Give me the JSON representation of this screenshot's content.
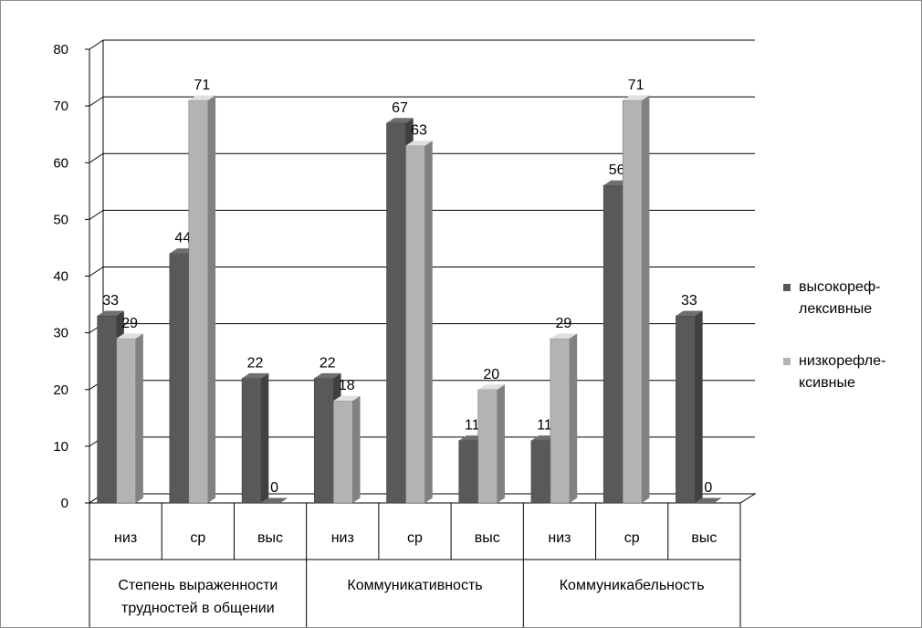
{
  "chart_data": {
    "type": "bar",
    "categories": [
      "низ",
      "ср",
      "выс",
      "низ",
      "ср",
      "выс",
      "низ",
      "ср",
      "выс"
    ],
    "groups": [
      {
        "lines": [
          "Степень выраженности",
          "трудностей в общении"
        ],
        "span": 3
      },
      {
        "lines": [
          "Коммуникативность"
        ],
        "span": 3
      },
      {
        "lines": [
          "Коммуникабельность"
        ],
        "span": 3
      }
    ],
    "series": [
      {
        "name_lines": [
          "высокореф-",
          "лексивные"
        ],
        "color": "#595959",
        "values": [
          33,
          44,
          22,
          22,
          67,
          11,
          11,
          56,
          33
        ]
      },
      {
        "name_lines": [
          "низкорефле-",
          "ксивные"
        ],
        "color": "#b3b3b3",
        "values": [
          29,
          71,
          0,
          18,
          63,
          20,
          29,
          71,
          0
        ]
      }
    ],
    "ylim": [
      0,
      80
    ],
    "yticks": [
      0,
      10,
      20,
      30,
      40,
      50,
      60,
      70,
      80
    ],
    "grid": true,
    "legend_position": "right",
    "three_d": true
  }
}
